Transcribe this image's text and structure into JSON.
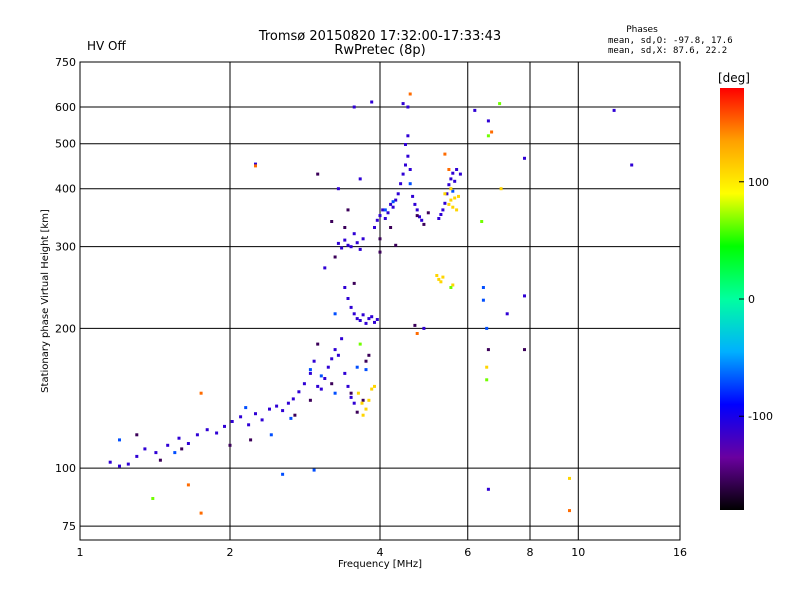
{
  "status": {
    "text": "HV Off",
    "color": "#ff0000"
  },
  "chart_data": {
    "type": "scatter",
    "title": "Tromsø 20150820 17:32:00-17:33:43",
    "subtitle": "RwPretec (8p)",
    "xlabel": "Frequency [MHz]",
    "ylabel": "Stationary phase Virtual Height [km]",
    "x_scale": "log",
    "y_scale": "log",
    "xlim": [
      1,
      16
    ],
    "ylim": [
      70,
      750
    ],
    "x_ticks": [
      1,
      2,
      4,
      6,
      8,
      10,
      16
    ],
    "x_tick_labels": [
      "1",
      "2",
      "4",
      "6",
      "8",
      "10",
      "16"
    ],
    "y_ticks": [
      75,
      100,
      200,
      300,
      400,
      500,
      600,
      750
    ],
    "y_tick_labels": [
      "75",
      "100",
      "200",
      "300",
      "400",
      "500",
      "600",
      "750"
    ],
    "grid": true,
    "phase_stats": {
      "header": "Phases",
      "o_line": "mean, sd,O: -97.8, 17.6",
      "x_line": "mean, sd,X:  87.6, 22.2"
    },
    "colorbar": {
      "label": "[deg]",
      "range": [
        -180,
        180
      ],
      "ticks": [
        100,
        0,
        -100
      ],
      "tick_labels": [
        "100",
        "0",
        "-100"
      ],
      "stops": [
        "#000000",
        "#6a00a0",
        "#0000ff",
        "#00b0ff",
        "#00ffa0",
        "#00ff00",
        "#ffff00",
        "#ffa000",
        "#ff0000"
      ]
    },
    "series": [
      {
        "phase": -110,
        "points": [
          [
            1.15,
            103
          ],
          [
            1.2,
            101
          ],
          [
            1.25,
            102
          ],
          [
            1.3,
            106
          ],
          [
            1.35,
            110
          ],
          [
            1.42,
            108
          ],
          [
            1.5,
            112
          ],
          [
            1.58,
            116
          ],
          [
            1.65,
            113
          ],
          [
            1.72,
            118
          ],
          [
            1.8,
            121
          ],
          [
            1.88,
            119
          ],
          [
            1.95,
            123
          ],
          [
            2.02,
            126
          ],
          [
            2.1,
            129
          ],
          [
            2.18,
            124
          ],
          [
            2.25,
            131
          ],
          [
            2.32,
            127
          ],
          [
            2.4,
            134
          ],
          [
            2.48,
            136
          ],
          [
            2.55,
            133
          ],
          [
            2.62,
            138
          ],
          [
            2.68,
            141
          ],
          [
            2.75,
            146
          ],
          [
            2.82,
            152
          ],
          [
            2.9,
            160
          ],
          [
            2.95,
            170
          ],
          [
            3.0,
            150
          ],
          [
            3.05,
            148
          ],
          [
            3.1,
            156
          ],
          [
            3.15,
            165
          ],
          [
            3.2,
            172
          ],
          [
            3.25,
            180
          ],
          [
            3.3,
            175
          ],
          [
            3.35,
            190
          ],
          [
            3.4,
            160
          ],
          [
            3.45,
            150
          ],
          [
            3.5,
            142
          ],
          [
            3.55,
            138
          ],
          [
            3.3,
            305
          ],
          [
            3.35,
            298
          ],
          [
            3.4,
            310
          ],
          [
            3.45,
            302
          ],
          [
            3.5,
            300
          ],
          [
            3.55,
            320
          ],
          [
            3.6,
            306
          ],
          [
            3.65,
            296
          ],
          [
            3.7,
            312
          ],
          [
            3.4,
            245
          ],
          [
            3.45,
            232
          ],
          [
            3.5,
            222
          ],
          [
            3.55,
            215
          ],
          [
            3.6,
            210
          ],
          [
            3.65,
            208
          ],
          [
            3.7,
            214
          ],
          [
            3.75,
            205
          ],
          [
            3.8,
            210
          ],
          [
            3.85,
            212
          ],
          [
            3.9,
            206
          ],
          [
            3.95,
            209
          ],
          [
            3.9,
            330
          ],
          [
            3.95,
            342
          ],
          [
            4.0,
            350
          ],
          [
            4.05,
            360
          ],
          [
            4.1,
            345
          ],
          [
            4.15,
            355
          ],
          [
            4.2,
            370
          ],
          [
            4.25,
            365
          ],
          [
            4.3,
            378
          ],
          [
            4.35,
            390
          ],
          [
            4.4,
            410
          ],
          [
            4.45,
            430
          ],
          [
            4.5,
            450
          ],
          [
            4.55,
            470
          ],
          [
            4.5,
            498
          ],
          [
            4.55,
            520
          ],
          [
            4.6,
            440
          ],
          [
            4.65,
            385
          ],
          [
            4.7,
            370
          ],
          [
            4.75,
            360
          ],
          [
            4.8,
            348
          ],
          [
            4.85,
            342
          ],
          [
            5.25,
            345
          ],
          [
            5.3,
            352
          ],
          [
            5.35,
            360
          ],
          [
            5.4,
            372
          ],
          [
            5.45,
            390
          ],
          [
            5.5,
            408
          ],
          [
            5.55,
            420
          ],
          [
            5.6,
            432
          ],
          [
            5.65,
            415
          ],
          [
            5.7,
            440
          ],
          [
            3.55,
            600
          ],
          [
            3.85,
            615
          ],
          [
            4.55,
            600
          ],
          [
            5.8,
            430
          ],
          [
            6.2,
            590
          ],
          [
            6.6,
            560
          ],
          [
            7.8,
            465
          ],
          [
            12.8,
            450
          ],
          [
            11.8,
            590
          ],
          [
            7.8,
            235
          ],
          [
            7.2,
            215
          ],
          [
            6.6,
            90
          ],
          [
            4.9,
            200
          ],
          [
            3.1,
            270
          ],
          [
            3.3,
            400
          ],
          [
            2.25,
            452
          ],
          [
            3.65,
            420
          ],
          [
            4.45,
            610
          ]
        ]
      },
      {
        "phase": -155,
        "points": [
          [
            1.3,
            118
          ],
          [
            1.45,
            104
          ],
          [
            1.6,
            110
          ],
          [
            2.0,
            112
          ],
          [
            2.2,
            115
          ],
          [
            2.7,
            130
          ],
          [
            2.9,
            140
          ],
          [
            3.0,
            185
          ],
          [
            3.2,
            152
          ],
          [
            3.4,
            330
          ],
          [
            3.45,
            360
          ],
          [
            3.5,
            145
          ],
          [
            3.6,
            132
          ],
          [
            3.7,
            140
          ],
          [
            3.75,
            170
          ],
          [
            3.55,
            250
          ],
          [
            4.0,
            312
          ],
          [
            4.2,
            330
          ],
          [
            4.3,
            302
          ],
          [
            4.7,
            203
          ],
          [
            4.9,
            335
          ],
          [
            5.0,
            355
          ],
          [
            6.6,
            180
          ],
          [
            7.8,
            180
          ],
          [
            3.0,
            430
          ],
          [
            3.2,
            340
          ],
          [
            3.25,
            285
          ],
          [
            4.75,
            350
          ],
          [
            4.0,
            292
          ],
          [
            3.8,
            175
          ]
        ]
      },
      {
        "phase": -70,
        "points": [
          [
            1.2,
            115
          ],
          [
            1.55,
            108
          ],
          [
            2.15,
            135
          ],
          [
            2.42,
            118
          ],
          [
            2.65,
            128
          ],
          [
            2.9,
            163
          ],
          [
            3.05,
            158
          ],
          [
            3.25,
            145
          ],
          [
            3.6,
            165
          ],
          [
            4.1,
            360
          ],
          [
            4.25,
            375
          ],
          [
            4.6,
            410
          ],
          [
            5.6,
            395
          ],
          [
            6.45,
            245
          ],
          [
            6.45,
            230
          ],
          [
            6.55,
            200
          ],
          [
            2.55,
            97
          ],
          [
            2.95,
            99
          ],
          [
            3.75,
            163
          ],
          [
            3.25,
            215
          ]
        ]
      },
      {
        "phase": 110,
        "points": [
          [
            3.62,
            145
          ],
          [
            3.68,
            138
          ],
          [
            3.7,
            130
          ],
          [
            3.75,
            134
          ],
          [
            3.8,
            140
          ],
          [
            3.85,
            148
          ],
          [
            3.9,
            150
          ],
          [
            5.5,
            370
          ],
          [
            5.55,
            378
          ],
          [
            5.6,
            365
          ],
          [
            5.65,
            382
          ],
          [
            5.7,
            360
          ],
          [
            5.75,
            385
          ],
          [
            5.55,
            400
          ],
          [
            5.4,
            390
          ],
          [
            5.2,
            260
          ],
          [
            5.25,
            255
          ],
          [
            5.3,
            252
          ],
          [
            5.35,
            258
          ],
          [
            5.6,
            248
          ],
          [
            7.0,
            400
          ],
          [
            6.55,
            165
          ],
          [
            9.6,
            95
          ]
        ]
      },
      {
        "phase": 65,
        "points": [
          [
            1.4,
            86
          ],
          [
            6.6,
            520
          ],
          [
            6.95,
            610
          ],
          [
            6.55,
            155
          ],
          [
            5.55,
            245
          ],
          [
            6.4,
            340
          ],
          [
            3.65,
            185
          ]
        ]
      },
      {
        "phase": 150,
        "points": [
          [
            1.75,
            145
          ],
          [
            1.65,
            92
          ],
          [
            1.75,
            80
          ],
          [
            2.25,
            448
          ],
          [
            4.6,
            640
          ],
          [
            5.4,
            475
          ],
          [
            6.7,
            530
          ],
          [
            4.75,
            195
          ],
          [
            9.6,
            81
          ],
          [
            5.5,
            440
          ]
        ]
      }
    ]
  }
}
